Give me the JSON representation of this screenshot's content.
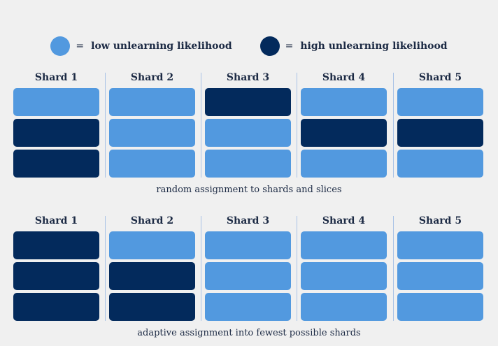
{
  "legend": {
    "low": {
      "label": "low unlearning likelihood",
      "color": "#5299df"
    },
    "high": {
      "label": "high unlearning likelihood",
      "color": "#032a5c"
    },
    "equals": "="
  },
  "panels": [
    {
      "caption": "random assignment to shards and slices",
      "shards": [
        {
          "title": "Shard 1",
          "slices": [
            "low",
            "high",
            "high"
          ]
        },
        {
          "title": "Shard 2",
          "slices": [
            "low",
            "low",
            "low"
          ]
        },
        {
          "title": "Shard 3",
          "slices": [
            "high",
            "low",
            "low"
          ]
        },
        {
          "title": "Shard 4",
          "slices": [
            "low",
            "high",
            "low"
          ]
        },
        {
          "title": "Shard 5",
          "slices": [
            "low",
            "high",
            "low"
          ]
        }
      ]
    },
    {
      "caption": "adaptive assignment into fewest possible shards",
      "shards": [
        {
          "title": "Shard 1",
          "slices": [
            "high",
            "high",
            "high"
          ]
        },
        {
          "title": "Shard 2",
          "slices": [
            "low",
            "high",
            "high"
          ]
        },
        {
          "title": "Shard 3",
          "slices": [
            "low",
            "low",
            "low"
          ]
        },
        {
          "title": "Shard 4",
          "slices": [
            "low",
            "low",
            "low"
          ]
        },
        {
          "title": "Shard 5",
          "slices": [
            "low",
            "low",
            "low"
          ]
        }
      ]
    }
  ]
}
